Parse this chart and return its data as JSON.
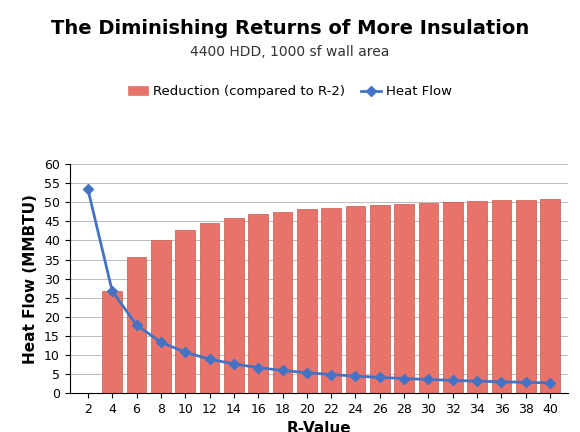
{
  "title": "The Diminishing Returns of More Insulation",
  "subtitle": "4400 HDD, 1000 sf wall area",
  "xlabel": "R-Value",
  "ylabel": "Heat Flow (MMBTU)",
  "r_values": [
    2,
    4,
    6,
    8,
    10,
    12,
    14,
    16,
    18,
    20,
    22,
    24,
    26,
    28,
    30,
    32,
    34,
    36,
    38,
    40
  ],
  "heat_flow": [
    53.5,
    26.75,
    17.83,
    13.38,
    10.7,
    8.92,
    7.64,
    6.69,
    5.94,
    5.35,
    4.86,
    4.46,
    4.12,
    3.82,
    3.57,
    3.34,
    3.15,
    2.97,
    2.82,
    2.68
  ],
  "reduction": [
    0,
    26.75,
    35.67,
    40.12,
    42.8,
    44.58,
    45.86,
    46.81,
    47.56,
    48.15,
    48.64,
    49.04,
    49.38,
    49.68,
    49.93,
    50.16,
    50.35,
    50.53,
    50.68,
    50.82
  ],
  "bar_color": "#E8736A",
  "bar_edge_color": "#C45A52",
  "line_color": "#4472C4",
  "marker_color": "#4472C4",
  "bg_color": "#FFFFFF",
  "grid_color": "#BBBBBB",
  "ylim": [
    0,
    60
  ],
  "yticks": [
    0,
    5,
    10,
    15,
    20,
    25,
    30,
    35,
    40,
    45,
    50,
    55,
    60
  ],
  "title_fontsize": 14,
  "subtitle_fontsize": 10,
  "axis_label_fontsize": 11,
  "tick_fontsize": 9,
  "legend_fontsize": 9.5
}
